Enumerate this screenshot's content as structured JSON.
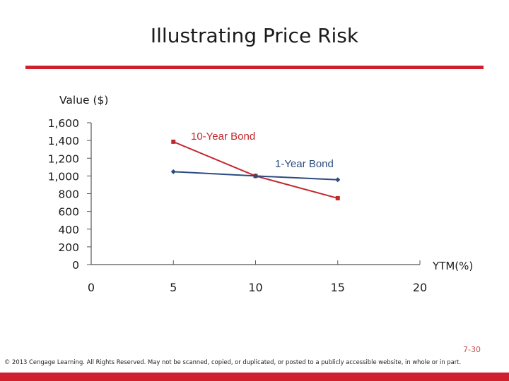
{
  "slide": {
    "title": "Illustrating Price Risk",
    "slide_number": "7-30",
    "copyright": "© 2013 Cengage Learning. All Rights Reserved. May not be scanned, copied, or duplicated, or posted to a publicly accessible website, in whole or in part."
  },
  "colors": {
    "accent": "#d0202e",
    "ten_year": "#c0282d",
    "one_year": "#2b4c7e"
  },
  "chart_data": {
    "type": "line",
    "title": "",
    "ylabel": "Value ($)",
    "xlabel": "YTM(%)",
    "xlim": [
      0,
      20
    ],
    "ylim": [
      0,
      1600
    ],
    "xticks": [
      0,
      5,
      10,
      15,
      20
    ],
    "yticks": [
      0,
      200,
      400,
      600,
      800,
      1000,
      1200,
      1400,
      1600
    ],
    "ytick_labels": [
      "0",
      "200",
      "400",
      "600",
      "800",
      "1,000",
      "1,200",
      "1,400",
      "1,600"
    ],
    "grid": false,
    "series": [
      {
        "name": "10-Year Bond",
        "color": "#c0282d",
        "marker": "square",
        "x": [
          5,
          10,
          15
        ],
        "y": [
          1386,
          1000,
          749
        ]
      },
      {
        "name": "1-Year Bond",
        "color": "#2b4c7e",
        "marker": "diamond",
        "x": [
          5,
          10,
          15
        ],
        "y": [
          1048,
          1000,
          957
        ]
      }
    ]
  }
}
